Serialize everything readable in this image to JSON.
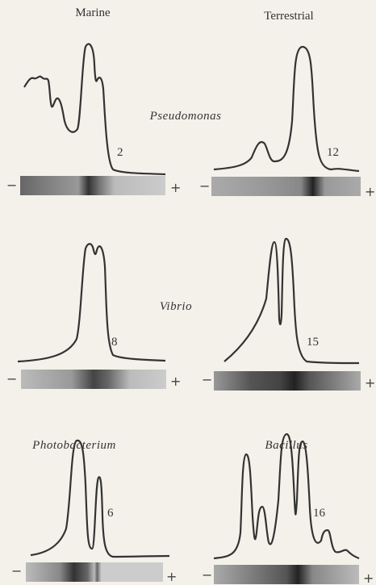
{
  "columns": [
    "Marine",
    "Terrestrial"
  ],
  "rows": [
    {
      "genus": "Pseudomonas",
      "labels": [
        "2",
        "12"
      ]
    },
    {
      "genus": "Vibrio",
      "labels": [
        "8",
        "15"
      ]
    },
    {
      "genus": "Photobacterium",
      "labels": [
        "6",
        "16"
      ]
    }
  ],
  "genus_terrestrial_row3": "Bacillus",
  "strip_ends": {
    "minus": "−",
    "plus": "+"
  }
}
